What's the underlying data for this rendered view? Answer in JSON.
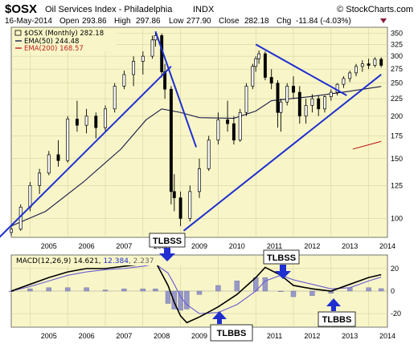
{
  "header": {
    "symbol": "$OSX",
    "name": "Oil Services Index - Philadelphia",
    "exchange": "INDX",
    "brand": "© StockCharts.com",
    "date": "16-May-2014",
    "open_label": "Open",
    "open": "293.86",
    "high_label": "High",
    "high": "297.86",
    "low_label": "Low",
    "low": "277.90",
    "close_label": "Close",
    "close": "282.18",
    "chg_label": "Chg",
    "chg": "-11.84 (-4.03%)"
  },
  "legend": {
    "price": "$OSX (Monthly) 282.18",
    "ema50": "EMA(50) 244.48",
    "ema200": "EMA(200) 168.57",
    "macd_prefix": "MACD(12,26,9) 14.621, ",
    "macd_signal": "12.384",
    "macd_hist": ", 2.237"
  },
  "colors": {
    "plot_bg": "#f8f6c8",
    "candle": "#000000",
    "ema50": "#1a1a4a",
    "ema200": "#c02020",
    "trend": "#1f2fd0",
    "signal_line": "#6a5bd0",
    "histogram": "#9898c8",
    "callout_arrow": "#1f2fd0"
  },
  "annotations": [
    "TLBSS",
    "TLBBS",
    "TLBSS",
    "TLBBS"
  ],
  "chart_data": [
    {
      "type": "candlestick",
      "panel": "price",
      "title": "$OSX Oil Services Index - Philadelphia INDX",
      "x_ticks": [
        "2005",
        "2006",
        "2007",
        "2008",
        "2009",
        "2010",
        "2011",
        "2012",
        "2013",
        "2014"
      ],
      "y_ticks": [
        100,
        125,
        150,
        175,
        200,
        225,
        250,
        275,
        300,
        325,
        350
      ],
      "y_scale": "log",
      "ylim": [
        88,
        365
      ],
      "x": [
        "2004-07",
        "2004-10",
        "2005-01",
        "2005-04",
        "2005-07",
        "2005-10",
        "2006-01",
        "2006-04",
        "2006-07",
        "2006-10",
        "2007-01",
        "2007-04",
        "2007-07",
        "2007-10",
        "2008-01",
        "2008-04",
        "2008-05",
        "2008-07",
        "2008-08",
        "2008-10",
        "2008-11",
        "2009-01",
        "2009-04",
        "2009-07",
        "2009-10",
        "2010-01",
        "2010-04",
        "2010-06",
        "2010-08",
        "2010-10",
        "2010-12",
        "2011-01",
        "2011-02",
        "2011-04",
        "2011-06",
        "2011-08",
        "2011-09",
        "2011-11",
        "2012-01",
        "2012-03",
        "2012-05",
        "2012-07",
        "2012-09",
        "2012-11",
        "2013-01",
        "2013-03",
        "2013-05",
        "2013-07",
        "2013-09",
        "2013-11",
        "2014-01",
        "2014-03",
        "2014-05"
      ],
      "values": [
        [
          91,
          95,
          89,
          93
        ],
        [
          93,
          110,
          92,
          108
        ],
        [
          108,
          128,
          105,
          125
        ],
        [
          125,
          140,
          118,
          136
        ],
        [
          136,
          158,
          134,
          154
        ],
        [
          154,
          170,
          142,
          148
        ],
        [
          148,
          200,
          146,
          196
        ],
        [
          196,
          222,
          180,
          188
        ],
        [
          188,
          210,
          178,
          200
        ],
        [
          200,
          205,
          172,
          185
        ],
        [
          185,
          215,
          180,
          210
        ],
        [
          210,
          250,
          205,
          245
        ],
        [
          245,
          272,
          240,
          265
        ],
        [
          265,
          300,
          245,
          290
        ],
        [
          290,
          310,
          265,
          300
        ],
        [
          300,
          345,
          295,
          335
        ],
        [
          335,
          352,
          320,
          345
        ],
        [
          345,
          350,
          260,
          270
        ],
        [
          270,
          285,
          225,
          240
        ],
        [
          240,
          245,
          110,
          120
        ],
        [
          120,
          135,
          105,
          115
        ],
        [
          115,
          120,
          95,
          100
        ],
        [
          100,
          125,
          98,
          120
        ],
        [
          120,
          150,
          115,
          140
        ],
        [
          140,
          175,
          138,
          170
        ],
        [
          170,
          205,
          165,
          195
        ],
        [
          195,
          222,
          180,
          190
        ],
        [
          190,
          200,
          165,
          170
        ],
        [
          170,
          210,
          168,
          205
        ],
        [
          205,
          250,
          200,
          245
        ],
        [
          245,
          285,
          240,
          280
        ],
        [
          280,
          300,
          270,
          295
        ],
        [
          295,
          312,
          285,
          305
        ],
        [
          305,
          310,
          255,
          260
        ],
        [
          260,
          275,
          240,
          250
        ],
        [
          250,
          255,
          185,
          205
        ],
        [
          205,
          225,
          180,
          220
        ],
        [
          220,
          250,
          215,
          245
        ],
        [
          245,
          262,
          225,
          235
        ],
        [
          235,
          245,
          190,
          200
        ],
        [
          200,
          225,
          190,
          215
        ],
        [
          215,
          232,
          205,
          225
        ],
        [
          225,
          230,
          200,
          210
        ],
        [
          210,
          230,
          205,
          228
        ],
        [
          228,
          240,
          222,
          235
        ],
        [
          235,
          250,
          230,
          248
        ],
        [
          248,
          262,
          242,
          258
        ],
        [
          258,
          272,
          252,
          268
        ],
        [
          268,
          285,
          262,
          280
        ],
        [
          280,
          292,
          270,
          285
        ],
        [
          285,
          295,
          275,
          282
        ],
        [
          282,
          298,
          278,
          294
        ],
        [
          294,
          298,
          278,
          282
        ]
      ],
      "series": [
        {
          "name": "EMA(50) 244.48",
          "type": "line",
          "x": [
            "2004-07",
            "2005-06",
            "2006-06",
            "2007-06",
            "2008-02",
            "2008-07",
            "2009-01",
            "2009-07",
            "2010-06",
            "2011-01",
            "2011-06",
            "2012-06",
            "2013-06",
            "2014-05"
          ],
          "values": [
            95,
            105,
            128,
            160,
            195,
            210,
            205,
            198,
            197,
            207,
            222,
            228,
            236,
            244.48
          ]
        },
        {
          "name": "EMA(200) 168.57",
          "type": "line",
          "x": [
            "2013-08",
            "2014-05"
          ],
          "values": [
            160,
            168.57
          ]
        }
      ],
      "trendlines": [
        {
          "x": [
            "2004-01",
            "2008-10"
          ],
          "values": [
            84,
            280
          ]
        },
        {
          "x": [
            "2008-05",
            "2009-06"
          ],
          "values": [
            355,
            162
          ]
        },
        {
          "x": [
            "2009-02",
            "2014-05"
          ],
          "values": [
            92,
            265
          ]
        },
        {
          "x": [
            "2011-01",
            "2013-06"
          ],
          "values": [
            325,
            230
          ]
        }
      ]
    },
    {
      "type": "line",
      "panel": "indicator",
      "title": "MACD(12,26,9) 14.621, 12.384, 2.237",
      "x_ticks": [
        "2005",
        "2006",
        "2007",
        "2008",
        "2009",
        "2010",
        "2011",
        "2012",
        "2013",
        "2014"
      ],
      "y_ticks": [
        -20,
        0,
        20
      ],
      "ylim": [
        -32,
        32
      ],
      "x": [
        "2004-07",
        "2005-01",
        "2005-07",
        "2006-01",
        "2006-07",
        "2007-01",
        "2007-07",
        "2008-01",
        "2008-05",
        "2008-09",
        "2008-11",
        "2009-01",
        "2009-03",
        "2009-07",
        "2010-01",
        "2010-07",
        "2011-01",
        "2011-04",
        "2011-09",
        "2012-01",
        "2012-07",
        "2013-01",
        "2013-07",
        "2014-01",
        "2014-05"
      ],
      "series": [
        {
          "name": "MACD",
          "values": [
            0,
            6,
            12,
            17,
            20,
            20,
            22,
            24,
            26,
            5,
            -10,
            -22,
            -28,
            -23,
            -14,
            -3,
            12,
            21,
            14,
            5,
            2,
            0,
            6,
            12,
            14.6
          ]
        },
        {
          "name": "Signal",
          "values": [
            0,
            4,
            9,
            14,
            17,
            19,
            20,
            22,
            24,
            16,
            6,
            -5,
            -12,
            -20,
            -19,
            -12,
            0,
            9,
            14,
            10,
            6,
            2,
            3,
            9,
            12.4
          ]
        },
        {
          "name": "Histogram",
          "type": "bar",
          "values": [
            0,
            2,
            3,
            3,
            3,
            1,
            2,
            2,
            2,
            -11,
            -16,
            -17,
            -16,
            -3,
            5,
            9,
            12,
            12,
            0,
            -5,
            -4,
            -2,
            3,
            3,
            2.2
          ]
        }
      ]
    }
  ]
}
